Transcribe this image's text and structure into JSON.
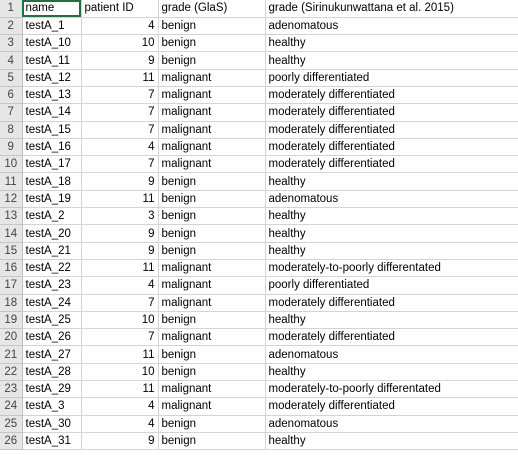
{
  "sheet": {
    "headers": [
      "name",
      "patient ID",
      "grade (GlaS)",
      "grade (Sirinukunwattana et al. 2015)"
    ],
    "rows": [
      {
        "num": "2",
        "name": "testA_1",
        "pid": "4",
        "glas": "benign",
        "grade": "adenomatous"
      },
      {
        "num": "3",
        "name": "testA_10",
        "pid": "10",
        "glas": "benign",
        "grade": "healthy"
      },
      {
        "num": "4",
        "name": "testA_11",
        "pid": "9",
        "glas": "benign",
        "grade": "healthy"
      },
      {
        "num": "5",
        "name": "testA_12",
        "pid": "11",
        "glas": "malignant",
        "grade": "poorly differentiated"
      },
      {
        "num": "6",
        "name": "testA_13",
        "pid": "7",
        "glas": "malignant",
        "grade": "moderately differentiated"
      },
      {
        "num": "7",
        "name": "testA_14",
        "pid": "7",
        "glas": "malignant",
        "grade": "moderately differentiated"
      },
      {
        "num": "8",
        "name": "testA_15",
        "pid": "7",
        "glas": "malignant",
        "grade": "moderately differentiated"
      },
      {
        "num": "9",
        "name": "testA_16",
        "pid": "4",
        "glas": "malignant",
        "grade": "moderately differentiated"
      },
      {
        "num": "10",
        "name": "testA_17",
        "pid": "7",
        "glas": "malignant",
        "grade": "moderately differentiated"
      },
      {
        "num": "11",
        "name": "testA_18",
        "pid": "9",
        "glas": "benign",
        "grade": "healthy"
      },
      {
        "num": "12",
        "name": "testA_19",
        "pid": "11",
        "glas": "benign",
        "grade": "adenomatous"
      },
      {
        "num": "13",
        "name": "testA_2",
        "pid": "3",
        "glas": "benign",
        "grade": "healthy"
      },
      {
        "num": "14",
        "name": "testA_20",
        "pid": "9",
        "glas": "benign",
        "grade": "healthy"
      },
      {
        "num": "15",
        "name": "testA_21",
        "pid": "9",
        "glas": "benign",
        "grade": "healthy"
      },
      {
        "num": "16",
        "name": "testA_22",
        "pid": "11",
        "glas": "malignant",
        "grade": "moderately-to-poorly differentated"
      },
      {
        "num": "17",
        "name": "testA_23",
        "pid": "4",
        "glas": "malignant",
        "grade": "poorly differentiated"
      },
      {
        "num": "18",
        "name": "testA_24",
        "pid": "7",
        "glas": "malignant",
        "grade": "moderately differentiated"
      },
      {
        "num": "19",
        "name": "testA_25",
        "pid": "10",
        "glas": "benign",
        "grade": "healthy"
      },
      {
        "num": "20",
        "name": "testA_26",
        "pid": "7",
        "glas": "malignant",
        "grade": "moderately differentiated"
      },
      {
        "num": "21",
        "name": "testA_27",
        "pid": "11",
        "glas": "benign",
        "grade": "adenomatous"
      },
      {
        "num": "22",
        "name": "testA_28",
        "pid": "10",
        "glas": "benign",
        "grade": "healthy"
      },
      {
        "num": "23",
        "name": "testA_29",
        "pid": "11",
        "glas": "malignant",
        "grade": "moderately-to-poorly differentated"
      },
      {
        "num": "24",
        "name": "testA_3",
        "pid": "4",
        "glas": "malignant",
        "grade": "moderately differentiated"
      },
      {
        "num": "25",
        "name": "testA_30",
        "pid": "4",
        "glas": "benign",
        "grade": "adenomatous"
      },
      {
        "num": "26",
        "name": "testA_31",
        "pid": "9",
        "glas": "benign",
        "grade": "healthy"
      }
    ]
  }
}
